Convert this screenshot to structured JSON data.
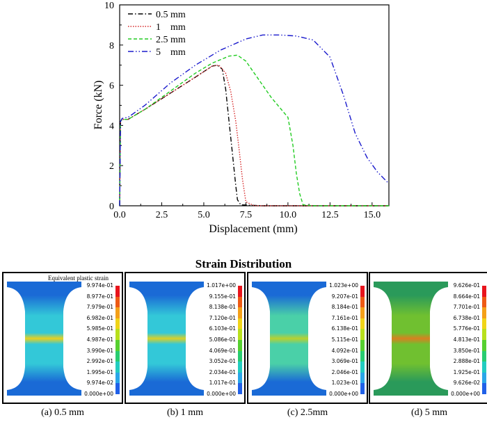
{
  "chart_data": {
    "type": "line",
    "xlabel": "Displacement (mm)",
    "ylabel": "Force (kN)",
    "xlim": [
      0,
      16
    ],
    "ylim": [
      0,
      10
    ],
    "x_ticks": [
      "0.0",
      "2.5",
      "5.0",
      "7.5",
      "10.0",
      "12.5",
      "15.0"
    ],
    "y_ticks": [
      "0",
      "2",
      "4",
      "6",
      "8",
      "10"
    ],
    "legend_position": "top-left",
    "series": [
      {
        "name": "0.5 mm",
        "color": "#000000",
        "dash": "dash-dot",
        "points": [
          [
            0,
            0
          ],
          [
            0.05,
            4.2
          ],
          [
            0.15,
            4.3
          ],
          [
            0.5,
            4.3
          ],
          [
            1.5,
            4.8
          ],
          [
            3,
            5.6
          ],
          [
            4.5,
            6.4
          ],
          [
            5.5,
            6.95
          ],
          [
            5.8,
            7.0
          ],
          [
            6.1,
            6.8
          ],
          [
            6.3,
            5.8
          ],
          [
            6.5,
            4.2
          ],
          [
            6.7,
            2.6
          ],
          [
            6.9,
            1.0
          ],
          [
            7.0,
            0.3
          ],
          [
            7.2,
            0.05
          ],
          [
            8.5,
            0.0
          ],
          [
            16,
            0.0
          ]
        ]
      },
      {
        "name": "1    mm",
        "color": "#d62728",
        "dash": "dot",
        "points": [
          [
            0,
            0
          ],
          [
            0.05,
            4.2
          ],
          [
            0.15,
            4.3
          ],
          [
            0.5,
            4.3
          ],
          [
            1.5,
            4.8
          ],
          [
            3,
            5.6
          ],
          [
            4.5,
            6.4
          ],
          [
            5.5,
            6.95
          ],
          [
            5.9,
            7.0
          ],
          [
            6.3,
            6.6
          ],
          [
            6.6,
            5.7
          ],
          [
            6.9,
            4.2
          ],
          [
            7.1,
            2.8
          ],
          [
            7.3,
            1.3
          ],
          [
            7.5,
            0.2
          ],
          [
            8,
            0.0
          ],
          [
            16,
            0.0
          ]
        ]
      },
      {
        "name": "2.5 mm",
        "color": "#22cc22",
        "dash": "dash",
        "points": [
          [
            0,
            0
          ],
          [
            0.05,
            4.2
          ],
          [
            0.15,
            4.3
          ],
          [
            0.5,
            4.3
          ],
          [
            1.5,
            4.8
          ],
          [
            3,
            5.7
          ],
          [
            4.5,
            6.6
          ],
          [
            5.5,
            7.1
          ],
          [
            6.5,
            7.45
          ],
          [
            7.0,
            7.5
          ],
          [
            7.5,
            7.2
          ],
          [
            8.0,
            6.6
          ],
          [
            8.5,
            6.0
          ],
          [
            9.0,
            5.4
          ],
          [
            9.5,
            4.9
          ],
          [
            10.0,
            4.4
          ],
          [
            10.3,
            3.0
          ],
          [
            10.5,
            1.6
          ],
          [
            10.7,
            0.6
          ],
          [
            10.9,
            0.05
          ],
          [
            11.5,
            0.0
          ],
          [
            16,
            0.0
          ]
        ]
      },
      {
        "name": "5    mm",
        "color": "#1a1acc",
        "dash": "dash-dot-dot",
        "points": [
          [
            0,
            0
          ],
          [
            0.05,
            4.2
          ],
          [
            0.15,
            4.35
          ],
          [
            0.5,
            4.4
          ],
          [
            1.5,
            5.0
          ],
          [
            3,
            6.1
          ],
          [
            4.5,
            7.0
          ],
          [
            6,
            7.75
          ],
          [
            7.5,
            8.3
          ],
          [
            8.5,
            8.5
          ],
          [
            9.5,
            8.5
          ],
          [
            10.5,
            8.45
          ],
          [
            11.5,
            8.25
          ],
          [
            12.5,
            7.4
          ],
          [
            13.3,
            5.5
          ],
          [
            14.0,
            3.6
          ],
          [
            14.7,
            2.4
          ],
          [
            15.3,
            1.7
          ],
          [
            16,
            1.1
          ]
        ]
      }
    ]
  },
  "strain": {
    "title": "Strain Distribution",
    "legend_title": "Equivalent plastic strain",
    "panels": [
      {
        "caption": "(a) 0.5 mm",
        "scale": [
          "9.974e-01",
          "8.977e-01",
          "7.979e-01",
          "6.982e-01",
          "5.985e-01",
          "4.987e-01",
          "3.990e-01",
          "2.992e-01",
          "1.995e-01",
          "9.974e-02",
          "0.000e+00"
        ],
        "neck_color": "#e8d020",
        "waist_color": "#33c8d8",
        "grip_color": "#1a6ad6"
      },
      {
        "caption": "(b) 1 mm",
        "scale": [
          "1.017e+00",
          "9.155e-01",
          "8.138e-01",
          "7.120e-01",
          "6.103e-01",
          "5.086e-01",
          "4.069e-01",
          "3.052e-01",
          "2.034e-01",
          "1.017e-01",
          "0.000e+00"
        ],
        "neck_color": "#d8d028",
        "waist_color": "#33c8d8",
        "grip_color": "#1a6ad6"
      },
      {
        "caption": "(c) 2.5mm",
        "scale": [
          "1.023e+00",
          "9.207e-01",
          "8.184e-01",
          "7.161e-01",
          "6.138e-01",
          "5.115e-01",
          "4.092e-01",
          "3.069e-01",
          "2.046e-01",
          "1.023e-01",
          "0.000e+00"
        ],
        "neck_color": "#b8d030",
        "waist_color": "#4ad0a8",
        "grip_color": "#1a6ad6"
      },
      {
        "caption": "(d) 5 mm",
        "scale": [
          "9.626e-01",
          "8.664e-01",
          "7.701e-01",
          "6.738e-01",
          "5.776e-01",
          "4.813e-01",
          "3.850e-01",
          "2.888e-01",
          "1.925e-01",
          "9.626e-02",
          "0.000e+00"
        ],
        "neck_color": "#d88020",
        "waist_color": "#70c030",
        "grip_color": "#2a9a5a"
      }
    ]
  }
}
